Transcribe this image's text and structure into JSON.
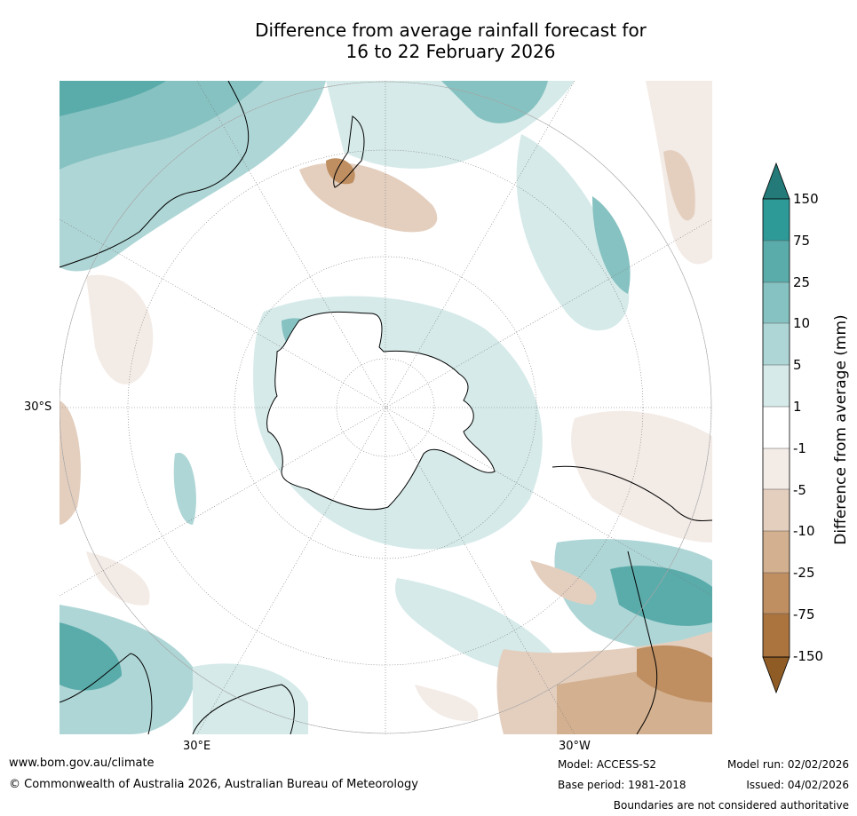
{
  "title": {
    "line1": "Difference from average rainfall forecast for",
    "line2": "16 to 22 February 2026"
  },
  "map": {
    "lat_label": "30°S",
    "lon_labels": [
      "30°E",
      "30°W"
    ]
  },
  "colorbar": {
    "title": "Difference from average (mm)",
    "ticks": [
      "150",
      "75",
      "25",
      "10",
      "5",
      "1",
      "-1",
      "-5",
      "-10",
      "-25",
      "-75",
      "-150"
    ],
    "colors": {
      "wet_extreme": "#237a78",
      "wet_150": "#2e9a97",
      "wet_75": "#5aacab",
      "wet_25": "#86c2c1",
      "wet_10": "#afd6d6",
      "wet_5": "#d5eae9",
      "neutral": "#ffffff",
      "dry_1": "#f3ebe6",
      "dry_5": "#e4cfbf",
      "dry_10": "#d3b08f",
      "dry_25": "#bf8f62",
      "dry_75": "#ab743f",
      "dry_extreme": "#8f5c26"
    }
  },
  "footer": {
    "website": "www.bom.gov.au/climate",
    "copyright": "© Commonwealth of Australia 2026, Australian Bureau of Meteorology",
    "model": "Model: ACCESS-S2",
    "base_period": "Base period: 1981-2018",
    "model_run": "Model run: 02/02/2026",
    "issued": "Issued: 04/02/2026",
    "disclaimer": "Boundaries are not considered authoritative"
  }
}
